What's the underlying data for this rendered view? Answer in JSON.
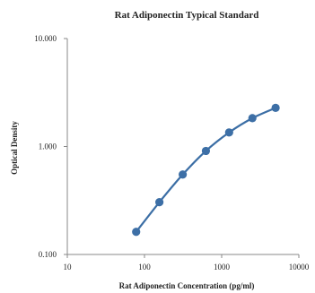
{
  "chart_data": {
    "type": "line",
    "title": "Rat Adiponectin Typical Standard",
    "xlabel": "Rat Adiponectin Concentration (pg/ml)",
    "ylabel": "Optical Density",
    "x_scale": "log",
    "y_scale": "log",
    "xlim": [
      10,
      10000
    ],
    "ylim": [
      0.1,
      10
    ],
    "x_ticks": [
      {
        "value": 10,
        "label": "10"
      },
      {
        "value": 100,
        "label": "100"
      },
      {
        "value": 1000,
        "label": "1000"
      },
      {
        "value": 10000,
        "label": "10000"
      }
    ],
    "y_ticks": [
      {
        "value": 0.1,
        "label": "0.100"
      },
      {
        "value": 1,
        "label": "1.000"
      },
      {
        "value": 10,
        "label": "10.000"
      }
    ],
    "grid": false,
    "legend": "none",
    "series": [
      {
        "color": "#3b6ea5",
        "marker_color": "#3d6fa6",
        "points": [
          {
            "x": 78,
            "y": 0.162
          },
          {
            "x": 156,
            "y": 0.305
          },
          {
            "x": 313,
            "y": 0.55
          },
          {
            "x": 625,
            "y": 0.91
          },
          {
            "x": 1250,
            "y": 1.35
          },
          {
            "x": 2500,
            "y": 1.83
          },
          {
            "x": 5000,
            "y": 2.28
          }
        ]
      }
    ]
  }
}
